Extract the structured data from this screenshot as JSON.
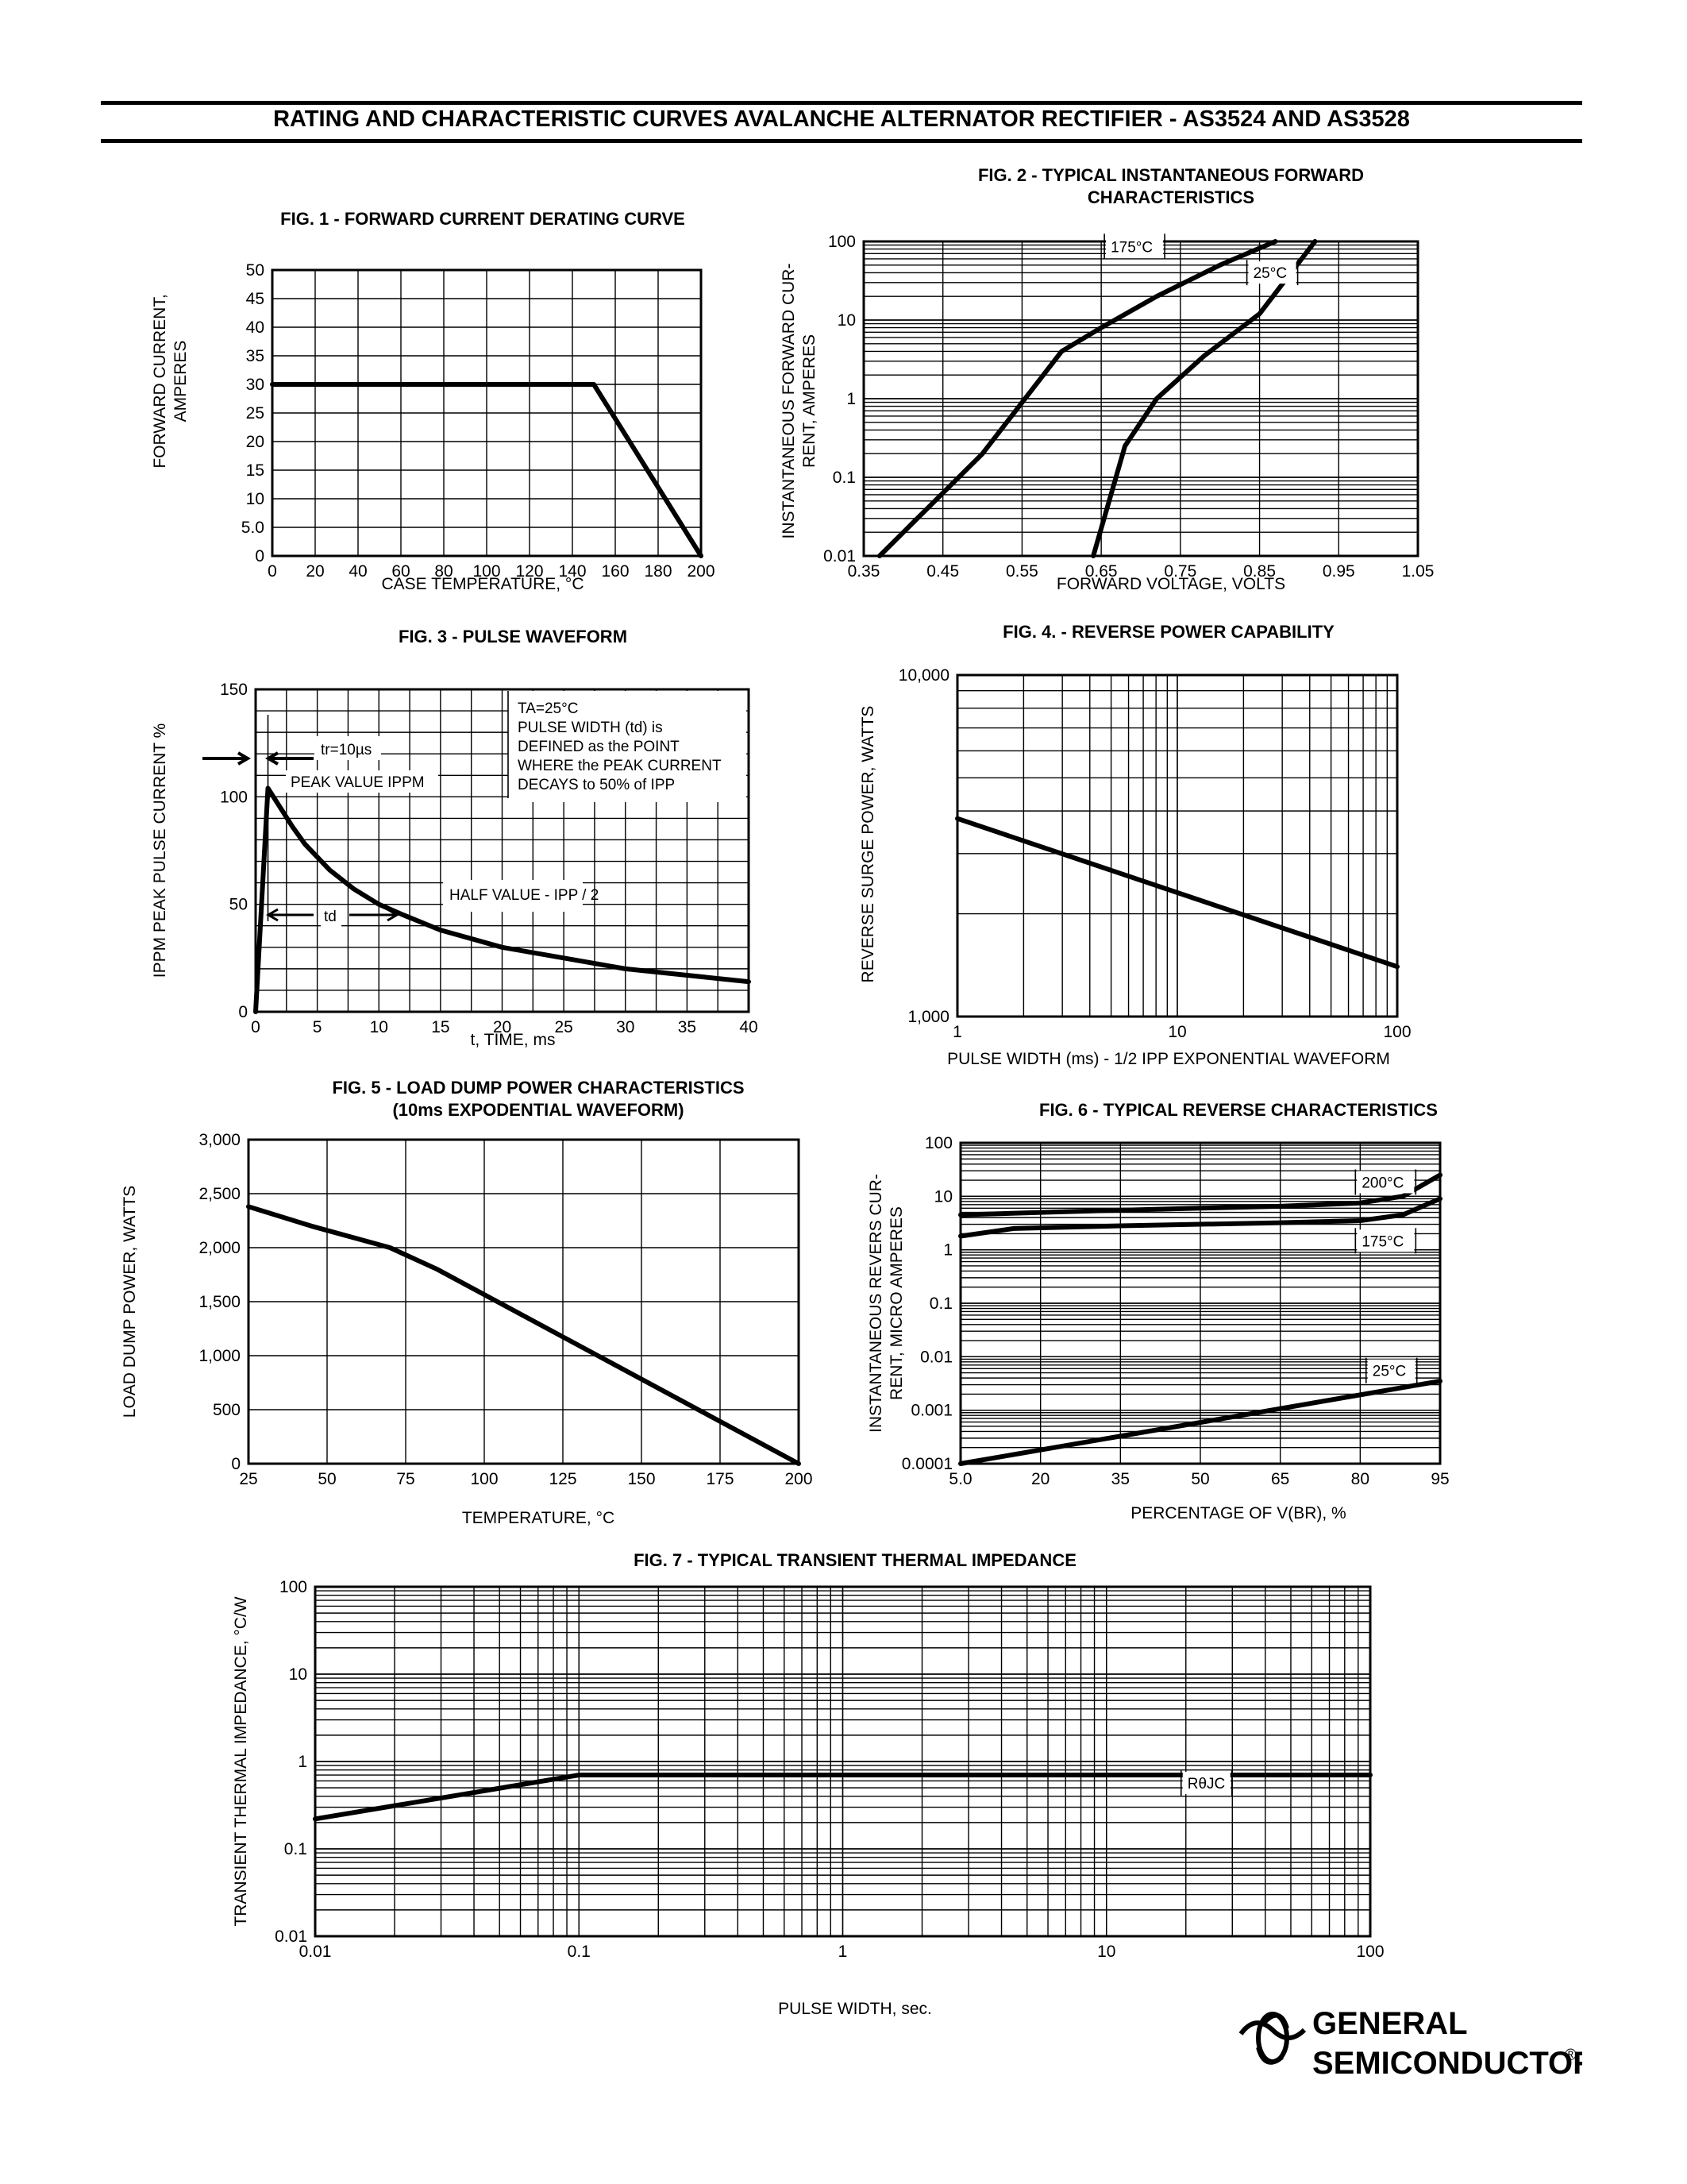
{
  "page": {
    "title": "RATING AND CHARACTERISTIC CURVES AVALANCHE ALTERNATOR RECTIFIER - AS3524 AND AS3528"
  },
  "logo": {
    "line1": "GENERAL",
    "line2": "SEMICONDUCTOR",
    "reg": "®"
  },
  "chart_data": [
    {
      "type": "line",
      "title": "FIG. 1 - FORWARD CURRENT DERATING CURVE",
      "xlabel": "CASE TEMPERATURE, °C",
      "ylabel": "FORWARD CURRENT, AMPERES",
      "xscale": "linear",
      "yscale": "linear",
      "xlim": [
        0,
        200
      ],
      "ylim": [
        0,
        50
      ],
      "grid": true,
      "xticks": [
        0,
        20,
        40,
        60,
        80,
        100,
        120,
        140,
        160,
        180,
        200
      ],
      "xtick_labels": [
        "0",
        "20",
        "40",
        "60",
        "80",
        "100",
        "120",
        "140",
        "160",
        "180",
        "200"
      ],
      "yticks": [
        0,
        5,
        10,
        15,
        20,
        25,
        30,
        35,
        40,
        45,
        50
      ],
      "ytick_labels": [
        "0",
        "5.0",
        "10",
        "15",
        "20",
        "25",
        "30",
        "35",
        "40",
        "45",
        "50"
      ],
      "series": [
        {
          "x": [
            0,
            150,
            200
          ],
          "y": [
            30,
            30,
            0
          ]
        }
      ],
      "annotations": []
    },
    {
      "type": "line",
      "title": "FIG. 2 - TYPICAL INSTANTANEOUS FORWARD CHARACTERISTICS",
      "xlabel": "FORWARD VOLTAGE, VOLTS",
      "ylabel": "INSTANTANEOUS FORWARD CURRENT, AMPERES",
      "xscale": "linear",
      "yscale": "log",
      "xlim": [
        0.35,
        1.05
      ],
      "ylim": [
        0.01,
        100
      ],
      "grid": true,
      "xticks": [
        0.35,
        0.45,
        0.55,
        0.65,
        0.75,
        0.85,
        0.95,
        1.05
      ],
      "xtick_labels": [
        "0.35",
        "0.45",
        "0.55",
        "0.65",
        "0.75",
        "0.85",
        "0.95",
        "1.05"
      ],
      "yticks": [
        0.01,
        0.1,
        1,
        10,
        100
      ],
      "ytick_labels": [
        "0.01",
        "0.1",
        "1",
        "10",
        "100"
      ],
      "series": [
        {
          "name": "175°C",
          "x": [
            0.37,
            0.5,
            0.6,
            0.65,
            0.72,
            0.8,
            0.87
          ],
          "y": [
            0.01,
            0.2,
            4,
            8,
            20,
            50,
            100
          ]
        },
        {
          "name": "25°C",
          "x": [
            0.64,
            0.68,
            0.72,
            0.78,
            0.85,
            0.92
          ],
          "y": [
            0.01,
            0.25,
            1,
            3.5,
            12,
            100
          ]
        }
      ],
      "annotations": [
        {
          "text": "175°C",
          "x": 0.66,
          "y": 75,
          "leader": [
            0.68,
            0.73
          ]
        },
        {
          "text": "25°C",
          "x": 0.84,
          "y": 35,
          "leader": [
            0.84,
            0.885
          ]
        }
      ]
    },
    {
      "type": "line",
      "title": "FIG. 3 - PULSE WAVEFORM",
      "xlabel": "t, TIME, ms",
      "ylabel": "IPPM PEAK PULSE CURRENT %",
      "xscale": "linear",
      "yscale": "linear",
      "xlim": [
        0,
        40
      ],
      "ylim": [
        0,
        150
      ],
      "grid": true,
      "xticks": [
        0,
        5,
        10,
        15,
        20,
        25,
        30,
        35,
        40
      ],
      "xtick_labels": [
        "0",
        "5",
        "10",
        "15",
        "20",
        "25",
        "30",
        "35",
        "40"
      ],
      "yticks": [
        0,
        50,
        100,
        150
      ],
      "ytick_labels": [
        "0",
        "50",
        "100",
        "150"
      ],
      "series": [
        {
          "x": [
            0,
            1,
            2,
            3,
            4,
            5,
            6,
            8,
            10,
            12,
            15,
            20,
            25,
            30,
            35,
            40
          ],
          "y": [
            0,
            104,
            95,
            86,
            78,
            72,
            66,
            57,
            50,
            45,
            38,
            30,
            25,
            20,
            17,
            14
          ]
        }
      ],
      "annotations": []
    },
    {
      "type": "line",
      "title": "FIG. 4. - REVERSE POWER CAPABILITY",
      "xlabel": "PULSE WIDTH (ms) - 1/2 IPP EXPONENTIAL WAVEFORM",
      "ylabel": "REVERSE SURGE POWER, WATTS",
      "xscale": "log",
      "yscale": "log",
      "xlim": [
        1,
        100
      ],
      "ylim": [
        1000,
        10000
      ],
      "grid": true,
      "xticks": [
        1,
        10,
        100
      ],
      "xtick_labels": [
        "1",
        "10",
        "100"
      ],
      "yticks": [
        1000,
        10000
      ],
      "ytick_labels": [
        "1,000",
        "10,000"
      ],
      "series": [
        {
          "x": [
            1,
            100
          ],
          "y": [
            3800,
            1400
          ]
        }
      ],
      "annotations": []
    },
    {
      "type": "line",
      "title": "FIG. 5 - LOAD DUMP POWER CHARACTERISTICS (10ms EXPODENTIAL WAVEFORM)",
      "xlabel": "TEMPERATURE, °C",
      "ylabel": "LOAD DUMP POWER, WATTS",
      "xscale": "linear",
      "yscale": "linear",
      "xlim": [
        25,
        200
      ],
      "ylim": [
        0,
        3000
      ],
      "grid": true,
      "xticks": [
        25,
        50,
        75,
        100,
        125,
        150,
        175,
        200
      ],
      "xtick_labels": [
        "25",
        "50",
        "75",
        "100",
        "125",
        "150",
        "175",
        "200"
      ],
      "yticks": [
        0,
        500,
        1000,
        1500,
        2000,
        2500,
        3000
      ],
      "ytick_labels": [
        "0",
        "500",
        "1,000",
        "1,500",
        "2,000",
        "2,500",
        "3,000"
      ],
      "series": [
        {
          "x": [
            25,
            45,
            70,
            85,
            200
          ],
          "y": [
            2380,
            2200,
            2000,
            1800,
            0
          ]
        }
      ],
      "annotations": []
    },
    {
      "type": "line",
      "title": "FIG. 6 - TYPICAL REVERSE CHARACTERISTICS",
      "xlabel": "PERCENTAGE OF V(BR), %",
      "ylabel": "INSTANTANEOUS REVERS CURRENT, MICRO AMPERES",
      "xscale": "linear",
      "yscale": "log",
      "xlim": [
        5,
        95
      ],
      "ylim": [
        0.0001,
        100
      ],
      "grid": true,
      "xticks": [
        5,
        20,
        35,
        50,
        65,
        80,
        95
      ],
      "xtick_labels": [
        "5.0",
        "20",
        "35",
        "50",
        "65",
        "80",
        "95"
      ],
      "yticks": [
        0.0001,
        0.001,
        0.01,
        0.1,
        1,
        10,
        100
      ],
      "ytick_labels": [
        "0.0001",
        "0.001",
        "0.01",
        "0.1",
        "1",
        "10",
        "100"
      ],
      "series": [
        {
          "name": "200°C",
          "x": [
            5,
            20,
            35,
            50,
            65,
            80,
            88,
            95
          ],
          "y": [
            4.5,
            5,
            5.5,
            6,
            6.5,
            7.5,
            10,
            25
          ]
        },
        {
          "name": "175°C",
          "x": [
            5,
            15,
            35,
            50,
            65,
            80,
            88,
            95
          ],
          "y": [
            1.8,
            2.5,
            2.8,
            3,
            3.2,
            3.5,
            4.5,
            9
          ]
        },
        {
          "name": "25°C",
          "x": [
            5,
            95
          ],
          "y": [
            0.0001,
            0.0035
          ]
        }
      ],
      "annotations": [
        {
          "text": "200°C",
          "x": 80,
          "y": 15,
          "leader": [
            88,
            90
          ]
        },
        {
          "text": "175°C",
          "x": 80,
          "y": 1.2,
          "leader": [
            88,
            90
          ]
        },
        {
          "text": "25°C",
          "x": 82,
          "y": 0.0045,
          "leader": [
            89,
            90
          ]
        }
      ]
    },
    {
      "type": "line",
      "title": "FIG. 7 - TYPICAL TRANSIENT THERMAL IMPEDANCE",
      "xlabel": "PULSE WIDTH, sec.",
      "ylabel": "TRANSIENT THERMAL IMPEDANCE, °C/W",
      "xscale": "log",
      "yscale": "log",
      "xlim": [
        0.01,
        100
      ],
      "ylim": [
        0.01,
        100
      ],
      "grid": true,
      "xticks": [
        0.01,
        0.1,
        1,
        10,
        100
      ],
      "xtick_labels": [
        "0.01",
        "0.1",
        "1",
        "10",
        "100"
      ],
      "yticks": [
        0.01,
        0.1,
        1,
        10,
        100
      ],
      "ytick_labels": [
        "0.01",
        "0.1",
        "1",
        "10",
        "100"
      ],
      "series": [
        {
          "name": "RθJC",
          "x": [
            0.01,
            0.1,
            100
          ],
          "y": [
            0.22,
            0.7,
            0.7
          ]
        }
      ],
      "annotations": [
        {
          "text": "RθJC",
          "x": 20,
          "y": 0.5,
          "leader": [
            50,
            65
          ]
        }
      ]
    }
  ],
  "fig3_notes": {
    "lines": [
      "TA=25°C",
      "PULSE WIDTH (td) is",
      "DEFINED as the POINT",
      "WHERE the PEAK CURRENT",
      "DECAYS to 50% of IPP"
    ],
    "tr": "tr=10µs",
    "peak": "PEAK VALUE IPPM",
    "half": "HALF VALUE - IPP / 2",
    "td": "td"
  }
}
